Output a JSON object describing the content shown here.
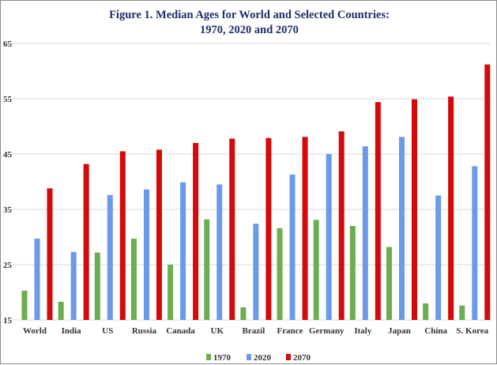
{
  "figure": {
    "title_line1": "Figure 1. Median Ages for World and Selected Countries:",
    "title_line2": "1970, 2020 and 2070"
  },
  "colors": {
    "1970": "#6cae4f",
    "2020": "#6a9ae8",
    "2070": "#d40a0a",
    "grid": "#d9d9d9"
  },
  "chart_data": {
    "type": "bar",
    "title": "Figure 1. Median Ages for World and Selected Countries: 1970, 2020 and 2070",
    "categories": [
      "World",
      "India",
      "US",
      "Russia",
      "Canada",
      "UK",
      "Brazil",
      "France",
      "Germany",
      "Italy",
      "Japan",
      "China",
      "S. Korea"
    ],
    "series": [
      {
        "name": "1970",
        "values": [
          20.3,
          18.3,
          27.2,
          29.7,
          25.0,
          33.2,
          17.3,
          31.6,
          33.1,
          32.0,
          28.2,
          18.0,
          17.6
        ]
      },
      {
        "name": "2020",
        "values": [
          29.7,
          27.3,
          37.6,
          38.6,
          39.9,
          39.5,
          32.4,
          41.3,
          45.0,
          46.4,
          48.1,
          37.5,
          42.8
        ]
      },
      {
        "name": "2070",
        "values": [
          38.8,
          43.2,
          45.5,
          45.8,
          47.0,
          47.8,
          47.9,
          48.1,
          49.1,
          54.4,
          54.9,
          55.4,
          61.2
        ]
      }
    ],
    "yticks": [
      15,
      25,
      35,
      45,
      55,
      65
    ],
    "ylim": [
      15,
      65
    ],
    "xlabel": "",
    "ylabel": "",
    "grid": true,
    "legend": "bottom-center"
  }
}
